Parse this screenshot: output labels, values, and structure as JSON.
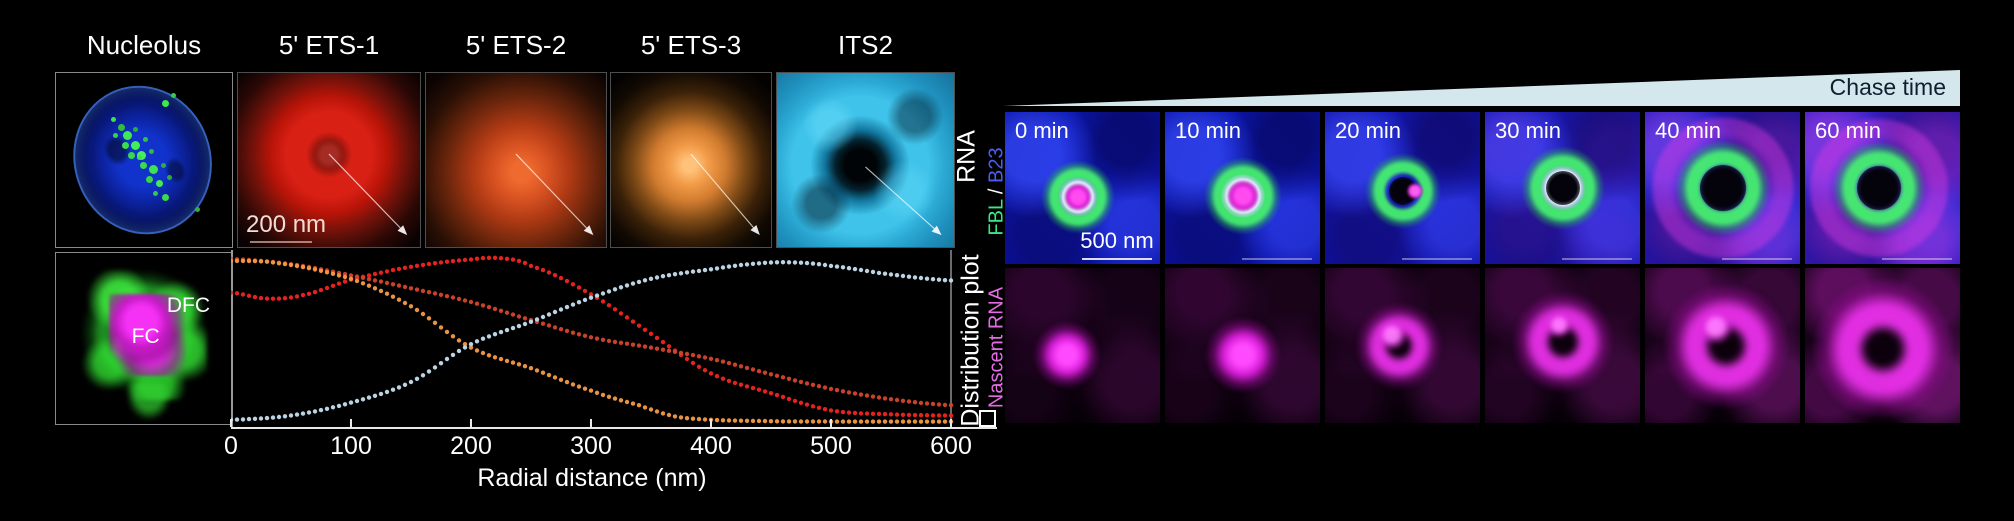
{
  "left": {
    "nucleolus_label": "Nucleolus",
    "rna_axis_label": "RNA",
    "inset": {
      "dfc_label": "DFC",
      "fc_label": "FC"
    },
    "rna_panels": [
      {
        "label": "5' ETS-1",
        "art": "ets1",
        "scale_bar": "200 nm"
      },
      {
        "label": "5' ETS-2",
        "art": "ets2"
      },
      {
        "label": "5' ETS-3",
        "art": "ets3"
      },
      {
        "label": "ITS2",
        "art": "its2"
      }
    ]
  },
  "chart_data": {
    "type": "scatter",
    "style": "dotted radial distribution curves",
    "title": "",
    "xlabel": "Radial distance (nm)",
    "ylabel": "Distribution plot",
    "xlim": [
      0,
      600
    ],
    "ylim": [
      0,
      1
    ],
    "xticks": [
      0,
      100,
      200,
      300,
      400,
      500,
      600
    ],
    "grid": false,
    "yticks_visible": false,
    "series": [
      {
        "name": "5' ETS-1",
        "color": "#ee2420",
        "x": [
          0,
          30,
          60,
          100,
          150,
          200,
          225,
          250,
          300,
          350,
          400,
          450,
          500,
          550,
          600
        ],
        "y": [
          0.77,
          0.735,
          0.755,
          0.845,
          0.92,
          0.962,
          0.97,
          0.925,
          0.76,
          0.53,
          0.3,
          0.185,
          0.085,
          0.062,
          0.055
        ]
      },
      {
        "name": "5' ETS-2",
        "color": "#d0452a",
        "x": [
          0,
          50,
          100,
          150,
          200,
          250,
          300,
          350,
          400,
          450,
          500,
          550,
          600
        ],
        "y": [
          0.965,
          0.935,
          0.87,
          0.795,
          0.715,
          0.61,
          0.51,
          0.45,
          0.385,
          0.295,
          0.21,
          0.15,
          0.115
        ]
      },
      {
        "name": "5' ETS-3",
        "color": "#f29a45",
        "x": [
          0,
          40,
          100,
          150,
          200,
          250,
          300,
          340,
          370,
          400,
          450,
          500,
          550,
          600
        ],
        "y": [
          0.955,
          0.94,
          0.85,
          0.69,
          0.45,
          0.33,
          0.2,
          0.115,
          0.05,
          0.03,
          0.022,
          0.02,
          0.02,
          0.02
        ]
      },
      {
        "name": "ITS2",
        "color": "#c3dcec",
        "x": [
          0,
          50,
          100,
          150,
          200,
          250,
          300,
          350,
          400,
          440,
          470,
          500,
          550,
          600
        ],
        "y": [
          0.03,
          0.055,
          0.13,
          0.25,
          0.47,
          0.6,
          0.74,
          0.85,
          0.905,
          0.94,
          0.945,
          0.925,
          0.875,
          0.84
        ]
      }
    ]
  },
  "right": {
    "chase_label": "Chase time",
    "time_points": [
      "0 min",
      "10 min",
      "20 min",
      "30 min",
      "40 min",
      "60 min"
    ],
    "row1_label": {
      "fbl": "FBL",
      "separator": " / ",
      "b23": "B23"
    },
    "row2_label": "Nascent RNA",
    "scale_bar": "500 nm",
    "fbl_color": "#3ce886",
    "b23_color": "#4c5ef2",
    "nascent_color": "#e66ce6"
  }
}
